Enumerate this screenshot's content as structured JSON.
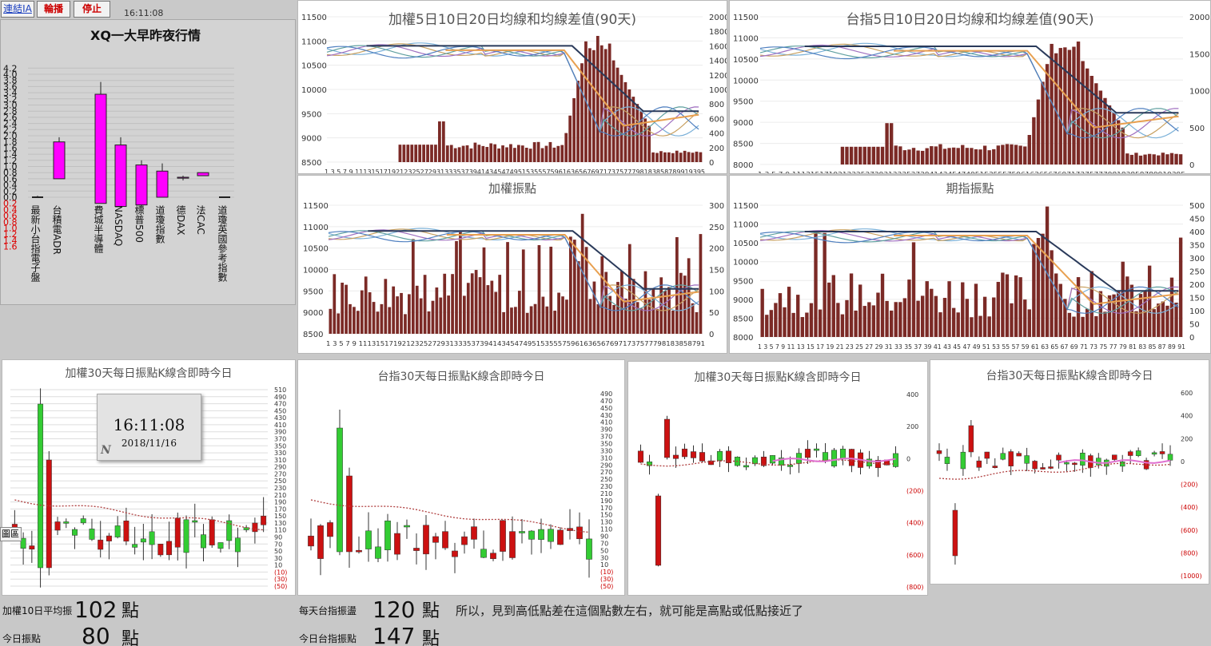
{
  "toolbar": {
    "connect": "連結IA",
    "rotate": "輪播",
    "stop": "停止",
    "time_top": "16:11:08"
  },
  "quotes": {
    "title": "XQ一大早昨夜行情",
    "ticks_pos": [
      "4.2",
      "4.0",
      "3.8",
      "3.6",
      "3.4",
      "3.2",
      "3.0",
      "2.8",
      "2.6",
      "2.4",
      "2.2",
      "2.0",
      "1.8",
      "1.6",
      "1.4",
      "1.2",
      "1.0",
      "0.8",
      "0.6",
      "0.4",
      "0.2",
      "0.0"
    ],
    "ticks_neg": [
      "0.2",
      "0.4",
      "0.6",
      "0.8",
      "1.0",
      "1.2",
      "1.4",
      "1.6"
    ],
    "labels": [
      "最新小台指電子盤",
      "台積電ADR",
      "費城半導體",
      "NASDAQ",
      "標普500",
      "道瓊指數",
      "德DAX",
      "法CAC",
      "道瓊英國參考指數"
    ],
    "values": [
      0.0,
      1.8,
      3.35,
      1.7,
      1.05,
      0.85,
      0.65,
      0.8,
      0.0
    ],
    "highs": [
      0.05,
      1.95,
      3.75,
      1.95,
      1.2,
      1.1,
      0.7,
      0.8,
      0.0
    ],
    "lows": [
      0.0,
      0.6,
      -0.2,
      -0.35,
      -0.3,
      0.0,
      0.55,
      0.7,
      0.0
    ],
    "opens": [
      0.0,
      0.6,
      -0.2,
      -0.3,
      -0.25,
      0.0,
      0.62,
      0.7,
      0.0
    ]
  },
  "charts_top": [
    {
      "title": "加權5日10日20日均線和均線差值(90天)",
      "left": [
        "11500",
        "11000",
        "10500",
        "10000",
        "9500",
        "9000",
        "8500"
      ],
      "right": [
        "2000",
        "1800",
        "1600",
        "1400",
        "1200",
        "1000",
        "800",
        "600",
        "400",
        "200",
        "0"
      ],
      "xticks": "1 3 5 7 9 11131517192123252729313335373941434547495153555759616365676971737577798183858789919395"
    },
    {
      "title": "台指5日10日20日均線和均線差值(90天)",
      "left": [
        "11500",
        "11000",
        "10500",
        "10000",
        "9500",
        "9000",
        "8500",
        "8000"
      ],
      "right": [
        "2000",
        "1500",
        "1000",
        "500",
        "0"
      ],
      "xticks": "1 3 5 7 9 11131517192123252729313335373941434547495153555759616365676971737577798183858789919395"
    },
    {
      "title": "加權振點",
      "left": [
        "11500",
        "11000",
        "10500",
        "10000",
        "9500",
        "9000",
        "8500"
      ],
      "right": [
        "300",
        "250",
        "200",
        "150",
        "100",
        "50",
        "0"
      ],
      "xticks": "1 3 5 7 9 11131517192123252729313335373941434547495153555759616365676971737577798183858791"
    },
    {
      "title": "期指振點",
      "left": [
        "11500",
        "11000",
        "10500",
        "10000",
        "9500",
        "9000",
        "8500",
        "8000"
      ],
      "right": [
        "500",
        "450",
        "400",
        "350",
        "300",
        "250",
        "200",
        "150",
        "100",
        "50",
        "0"
      ],
      "xticks": "1 3 5 7 9 11 13 15 17 19 21 23 25 27 29 31 33 35 37 39 41 43 45 47 49 51 53 55 57 59 61 63 65 67 69 71 73 75 77 79 81 83 85 87 89 91"
    }
  ],
  "charts_bottom": [
    {
      "title": "加權30天每日振點K線含即時今日",
      "right": [
        "510",
        "490",
        "470",
        "450",
        "430",
        "410",
        "390",
        "370",
        "350",
        "330",
        "310",
        "290",
        "270",
        "250",
        "230",
        "210",
        "190",
        "170",
        "150",
        "130",
        "110",
        "90",
        "70",
        "50",
        "30",
        "10",
        "(10)",
        "(30)",
        "(50)"
      ]
    },
    {
      "title": "台指30天每日振點K線含即時今日",
      "right": [
        "490",
        "470",
        "450",
        "430",
        "410",
        "390",
        "370",
        "350",
        "330",
        "310",
        "290",
        "270",
        "250",
        "230",
        "210",
        "190",
        "170",
        "150",
        "130",
        "110",
        "90",
        "70",
        "50",
        "30",
        "10",
        "(10)",
        "(30)",
        "(50)"
      ]
    },
    {
      "title": "加權30天每日振點K線含即時今日",
      "right": [
        "400",
        "200",
        "0",
        "(200)",
        "(400)",
        "(600)",
        "(800)"
      ]
    },
    {
      "title": "台指30天每日振點K線含即時今日",
      "right": [
        "600",
        "400",
        "200",
        "0",
        "(200)",
        "(400)",
        "(600)",
        "(800)",
        "(1000)"
      ]
    }
  ],
  "clock": {
    "time": "16:11:08",
    "date": "2018/11/16",
    "logo": "N"
  },
  "side_tab": "圖區",
  "footer": {
    "avg10_label": "加權10日平均振",
    "avg10_value": "102",
    "unit1": "點",
    "today_label": "今日振點",
    "today_value": "80",
    "unit2": "點",
    "daily_tx_label": "每天台指振盪",
    "daily_tx_value": "120",
    "unit3": "點",
    "today_tx_label": "今日台指振點",
    "today_tx_value": "147",
    "unit4": "點",
    "note": "所以，見到高低點差在這個點數左右，就可能是高點或低點接近了"
  },
  "colors": {
    "bar": "#7b2a26",
    "magenta": "#ff00ff",
    "green": "#33cc33",
    "red": "#cc1111",
    "navy": "#2a3a5a",
    "orange": "#e8a050"
  }
}
